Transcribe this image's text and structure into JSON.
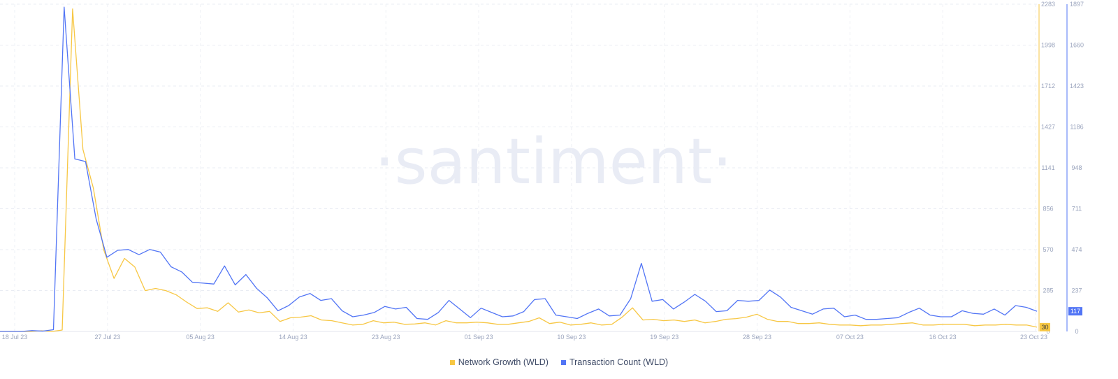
{
  "watermark": "·santiment·",
  "legend": [
    {
      "label": "Network Growth (WLD)",
      "color": "#f7c744"
    },
    {
      "label": "Transaction Count (WLD)",
      "color": "#5275f5"
    }
  ],
  "chart_data": {
    "type": "line",
    "title": "",
    "xlabel": "",
    "grid": true,
    "legend_position": "bottom-center",
    "x_ticks": [
      "18 Jul 23",
      "27 Jul 23",
      "05 Aug 23",
      "14 Aug 23",
      "23 Aug 23",
      "01 Sep 23",
      "10 Sep 23",
      "19 Sep 23",
      "28 Sep 23",
      "07 Oct 23",
      "16 Oct 23",
      "23 Oct 23"
    ],
    "y_left": {
      "label": "",
      "ticks": [
        "0",
        "285",
        "570",
        "856",
        "1141",
        "1427",
        "1712",
        "1998",
        "2283"
      ],
      "range": [
        0,
        2283
      ],
      "color": "#f7c744"
    },
    "y_right": {
      "label": "",
      "ticks": [
        "0",
        "237",
        "474",
        "711",
        "948",
        "1186",
        "1423",
        "1660",
        "1897"
      ],
      "range": [
        0,
        1897
      ],
      "color": "#5275f5"
    },
    "series": [
      {
        "name": "Network Growth (WLD)",
        "axis": "left",
        "color": "#f7c744",
        "last_value": "30",
        "values": [
          0,
          0,
          0,
          0,
          5,
          0,
          10,
          2250,
          1270,
          1000,
          570,
          370,
          510,
          450,
          285,
          300,
          285,
          255,
          205,
          160,
          165,
          140,
          200,
          135,
          150,
          130,
          140,
          70,
          95,
          100,
          110,
          80,
          75,
          60,
          45,
          50,
          75,
          60,
          65,
          50,
          52,
          60,
          45,
          75,
          60,
          60,
          65,
          60,
          50,
          50,
          60,
          70,
          95,
          55,
          65,
          45,
          50,
          60,
          45,
          50,
          100,
          165,
          80,
          85,
          75,
          80,
          70,
          80,
          60,
          70,
          85,
          90,
          100,
          120,
          85,
          70,
          70,
          55,
          55,
          60,
          50,
          45,
          45,
          40,
          45,
          45,
          50,
          55,
          60,
          45,
          45,
          50,
          50,
          50,
          40,
          45,
          45,
          50,
          45,
          45,
          30
        ]
      },
      {
        "name": "Transaction Count (WLD)",
        "axis": "right",
        "color": "#5275f5",
        "last_value": "117",
        "values": [
          0,
          0,
          0,
          5,
          2,
          10,
          1880,
          1000,
          985,
          650,
          430,
          470,
          475,
          445,
          475,
          460,
          375,
          345,
          285,
          280,
          275,
          380,
          270,
          330,
          250,
          195,
          120,
          150,
          200,
          220,
          180,
          190,
          120,
          85,
          95,
          110,
          145,
          130,
          140,
          75,
          70,
          110,
          180,
          130,
          80,
          135,
          110,
          85,
          90,
          115,
          185,
          190,
          95,
          85,
          75,
          105,
          130,
          90,
          95,
          190,
          395,
          175,
          185,
          130,
          170,
          215,
          175,
          115,
          120,
          180,
          175,
          180,
          240,
          200,
          140,
          120,
          100,
          130,
          135,
          85,
          95,
          70,
          70,
          75,
          80,
          110,
          135,
          95,
          85,
          85,
          120,
          105,
          100,
          130,
          95,
          150,
          140,
          117
        ]
      }
    ]
  }
}
